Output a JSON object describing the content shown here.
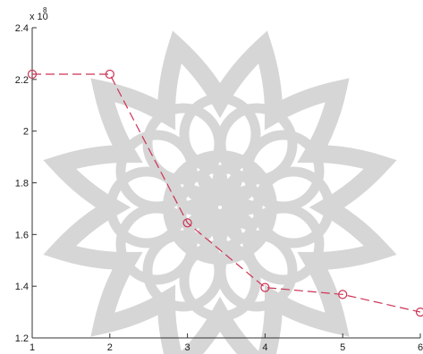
{
  "chart_data": {
    "type": "line",
    "x": [
      1,
      2,
      3,
      4,
      5,
      6
    ],
    "series": [
      {
        "values": [
          2.22,
          2.22,
          1.645,
          1.395,
          1.368,
          1.3
        ],
        "color": "#cc3355",
        "line_style": "dashed",
        "marker": "open-circle"
      }
    ],
    "y_multiplier": "x 10",
    "y_multiplier_exponent": "8",
    "xlim": [
      1,
      6
    ],
    "ylim": [
      1.2,
      2.4
    ],
    "x_ticks": [
      "1",
      "2",
      "3",
      "4",
      "5",
      "6"
    ],
    "y_ticks": [
      "1.2",
      "1.4",
      "1.6",
      "1.8",
      "2",
      "2.2",
      "2.4"
    ],
    "grid": false,
    "axis_color": "#333333",
    "watermark_color": "#d6d6d6"
  }
}
